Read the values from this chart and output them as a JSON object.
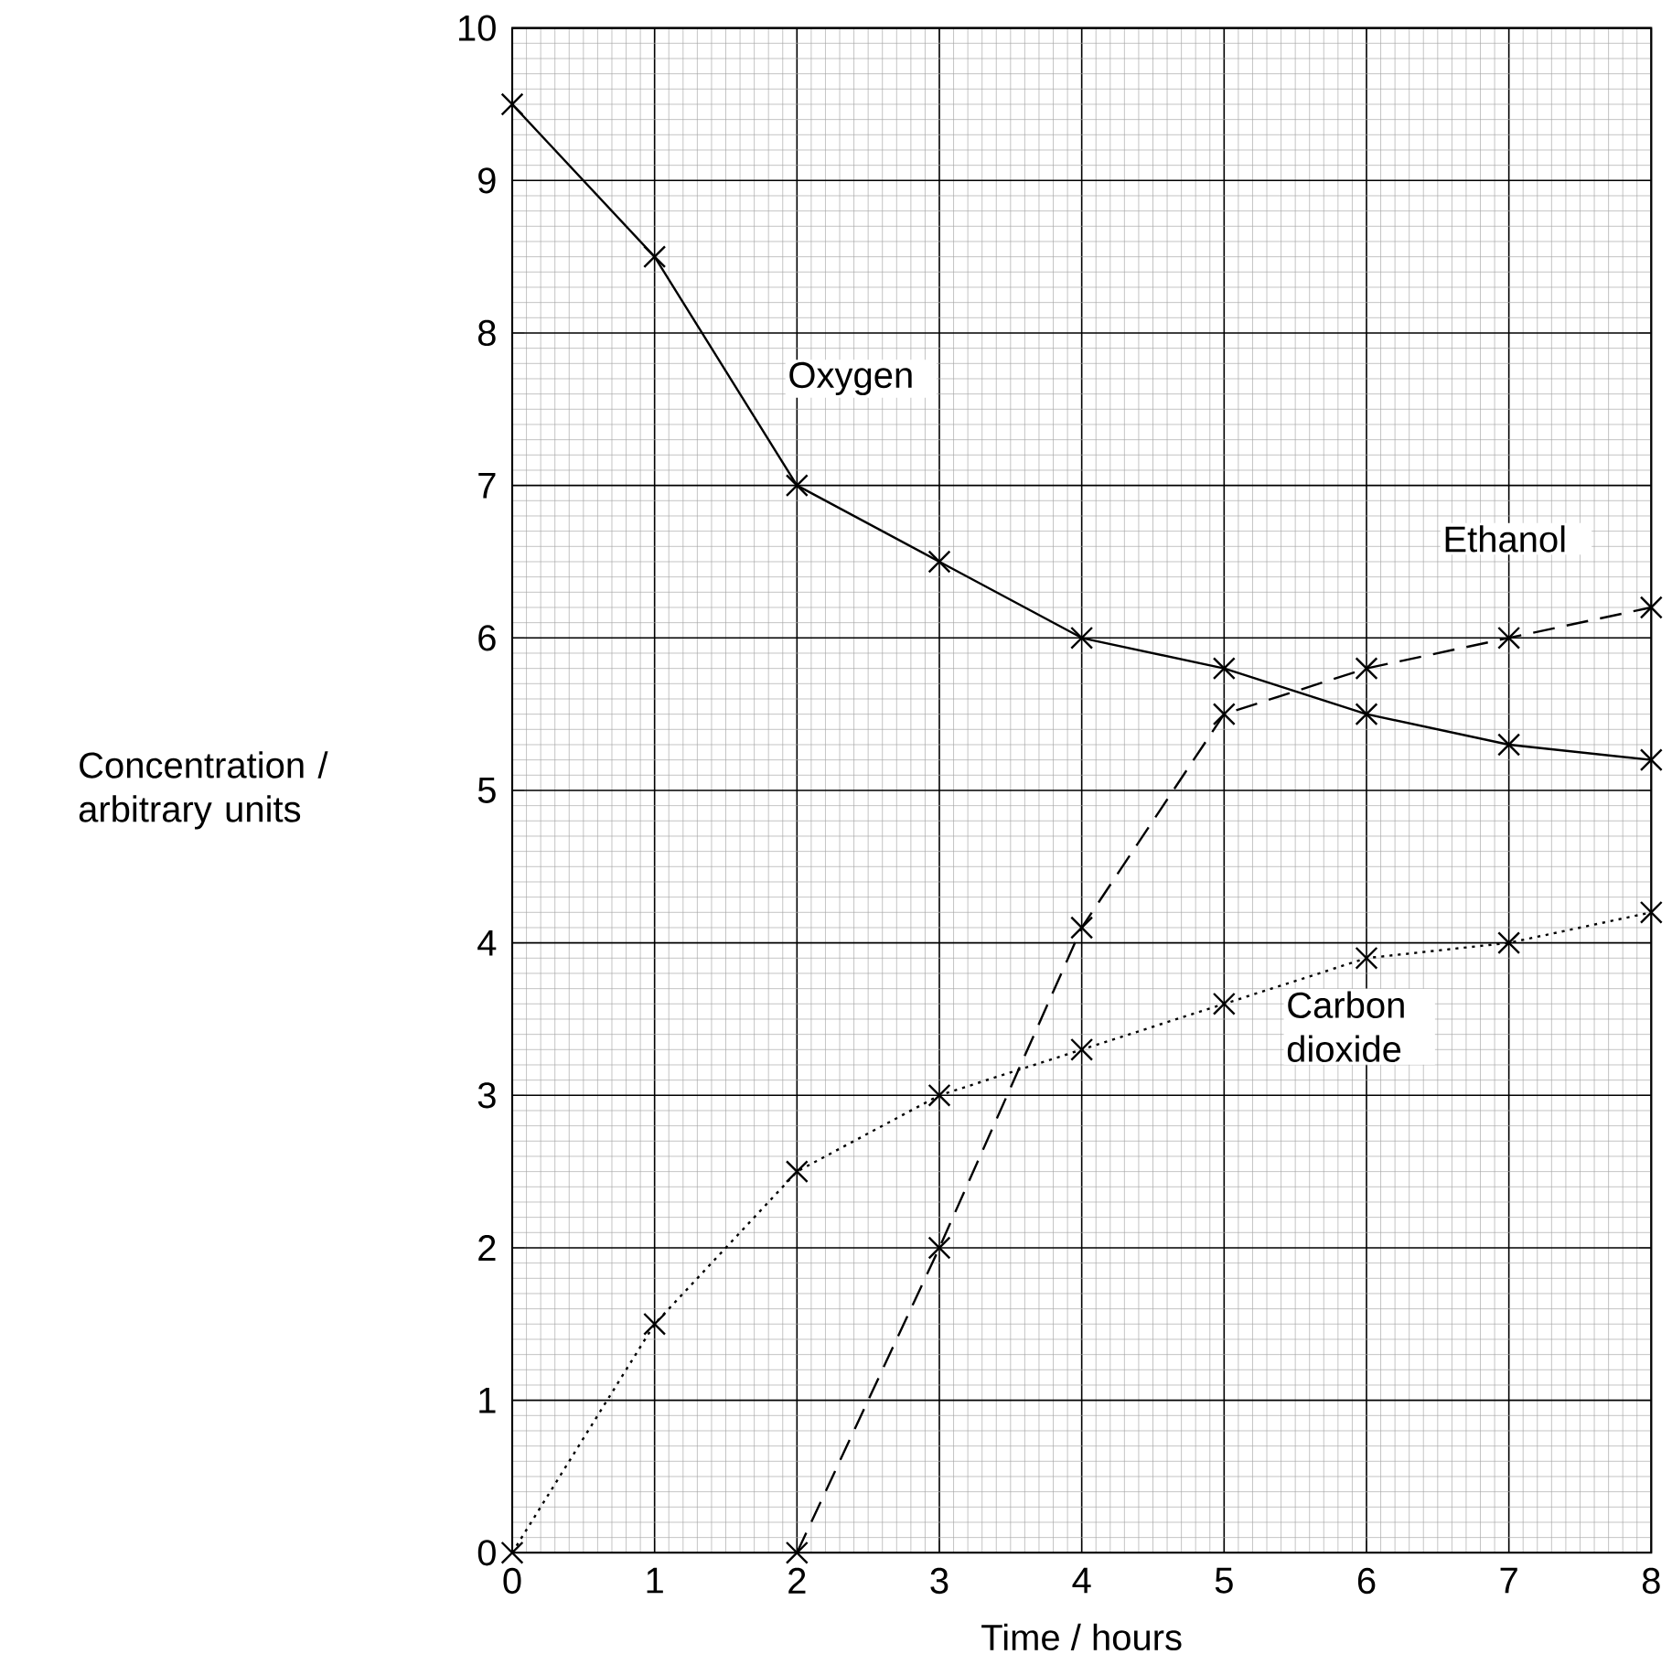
{
  "chart_data": {
    "type": "line",
    "xlabel": "Time / hours",
    "ylabel": "Concentration / arbitrary units",
    "xlim": [
      0,
      8
    ],
    "ylim": [
      0,
      10
    ],
    "xticks": [
      0,
      1,
      2,
      3,
      4,
      5,
      6,
      7,
      8
    ],
    "yticks": [
      0,
      1,
      2,
      3,
      4,
      5,
      6,
      7,
      8,
      9,
      10
    ],
    "grid": true,
    "marker": "cross",
    "series": [
      {
        "name": "Oxygen",
        "color": "#000000",
        "line_style": "solid",
        "x": [
          0,
          1,
          2,
          3,
          4,
          5,
          6,
          7,
          8
        ],
        "values": [
          9.5,
          8.5,
          7.0,
          6.5,
          6.0,
          5.8,
          5.5,
          5.3,
          5.2
        ]
      },
      {
        "name": "Ethanol",
        "color": "#000000",
        "line_style": "dashed",
        "x": [
          2,
          3,
          4,
          5,
          6,
          7,
          8
        ],
        "values": [
          0,
          2.0,
          4.1,
          5.5,
          5.8,
          6.0,
          6.2
        ]
      },
      {
        "name": "Carbon dioxide",
        "color": "#000000",
        "line_style": "dotted",
        "x": [
          0,
          1,
          2,
          3,
          4,
          5,
          6,
          7,
          8
        ],
        "values": [
          0,
          1.5,
          2.5,
          3.0,
          3.3,
          3.6,
          3.9,
          4.0,
          4.2
        ]
      }
    ]
  }
}
